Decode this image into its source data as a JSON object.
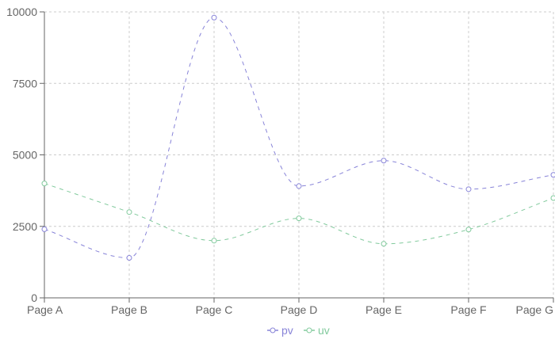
{
  "chart_data": {
    "type": "line",
    "categories": [
      "Page A",
      "Page B",
      "Page C",
      "Page D",
      "Page E",
      "Page F",
      "Page G"
    ],
    "series": [
      {
        "name": "pv",
        "color": "#8884d8",
        "values": [
          2400,
          1398,
          9800,
          3908,
          4800,
          3800,
          4300
        ]
      },
      {
        "name": "uv",
        "color": "#82ca9d",
        "values": [
          4000,
          3000,
          2000,
          2780,
          1890,
          2390,
          3490
        ]
      }
    ],
    "ylim": [
      0,
      10000
    ],
    "yticks": [
      "0",
      "2500",
      "5000",
      "7500",
      "10000"
    ],
    "grid": true,
    "line_style": "dashed",
    "curve": "smooth",
    "legend_position": "bottom-center"
  }
}
